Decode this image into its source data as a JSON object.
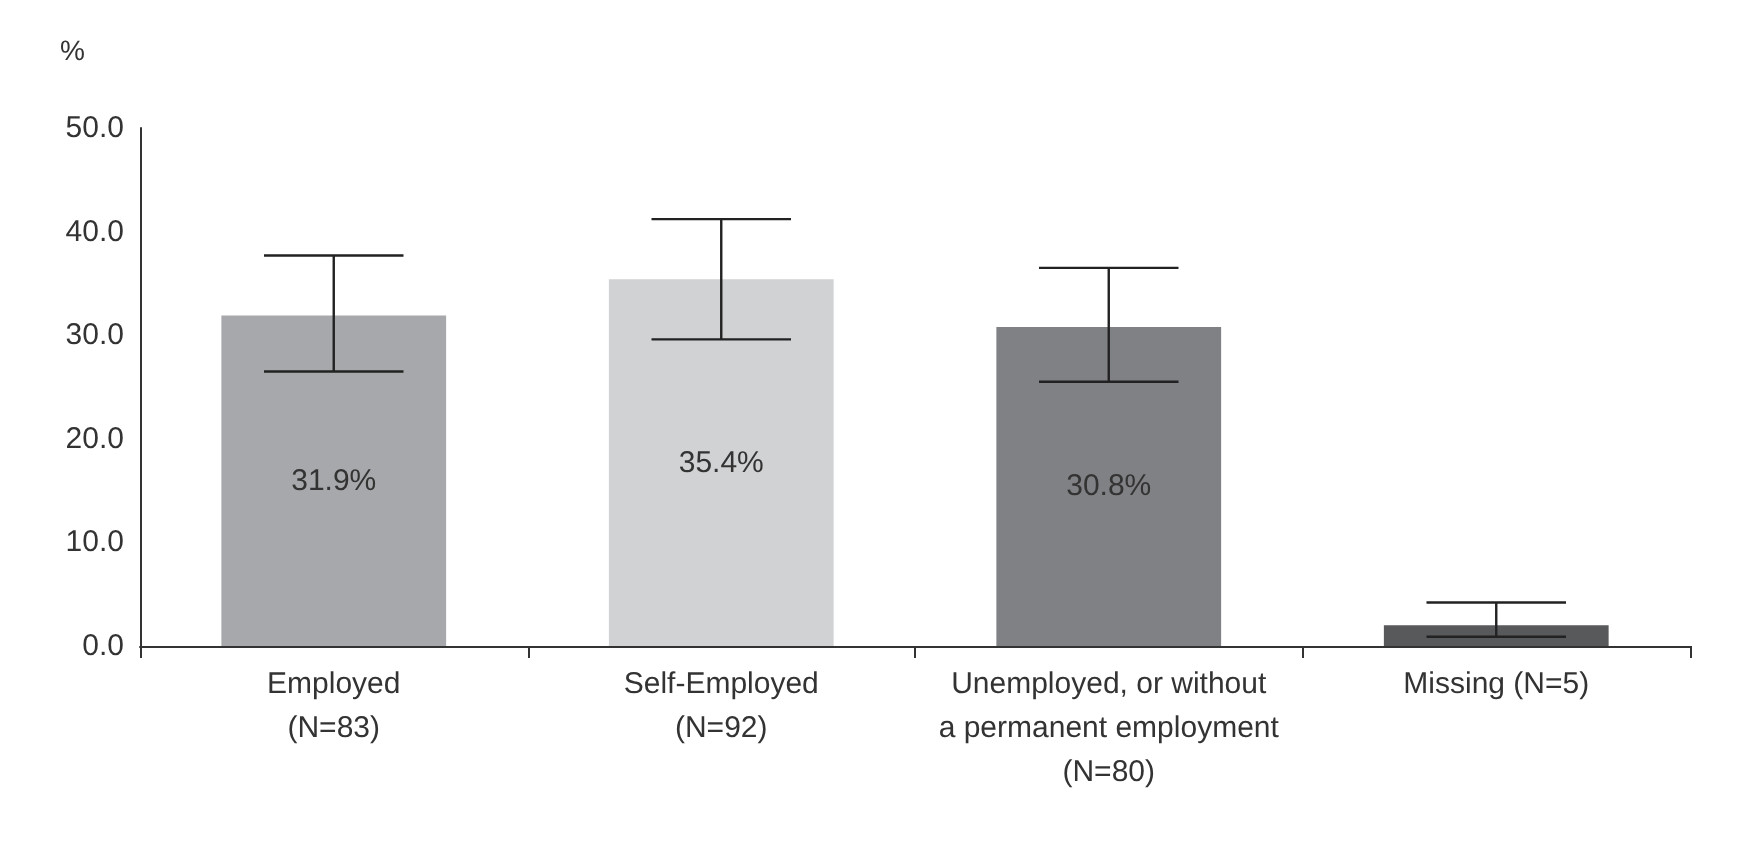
{
  "chart_data": {
    "type": "bar",
    "ylabel": "%",
    "categories": [
      "Employed\n(N=83)",
      "Self-Employed\n(N=92)",
      "Unemployed, or without\na permanent employment\n(N=80)",
      "Missing (N=5)"
    ],
    "values": [
      31.9,
      35.4,
      30.8,
      2.0
    ],
    "colors": [
      "#a7a8ab",
      "#d1d2d4",
      "#808184",
      "#58595b"
    ],
    "value_labels": [
      "31.9%",
      "35.4%",
      "30.8%",
      null
    ],
    "errors": [
      [
        26.5,
        37.7
      ],
      [
        29.6,
        41.2
      ],
      [
        25.5,
        36.5
      ],
      [
        0.9,
        4.2
      ]
    ],
    "ylim": [
      0,
      50
    ],
    "yticks": [
      {
        "value": 0,
        "label": "0.0"
      },
      {
        "value": 10,
        "label": "10.0"
      },
      {
        "value": 20,
        "label": "20.0"
      },
      {
        "value": 30,
        "label": "30.0"
      },
      {
        "value": 40,
        "label": "40.0"
      },
      {
        "value": 50,
        "label": "50.0"
      }
    ],
    "grid": false
  }
}
